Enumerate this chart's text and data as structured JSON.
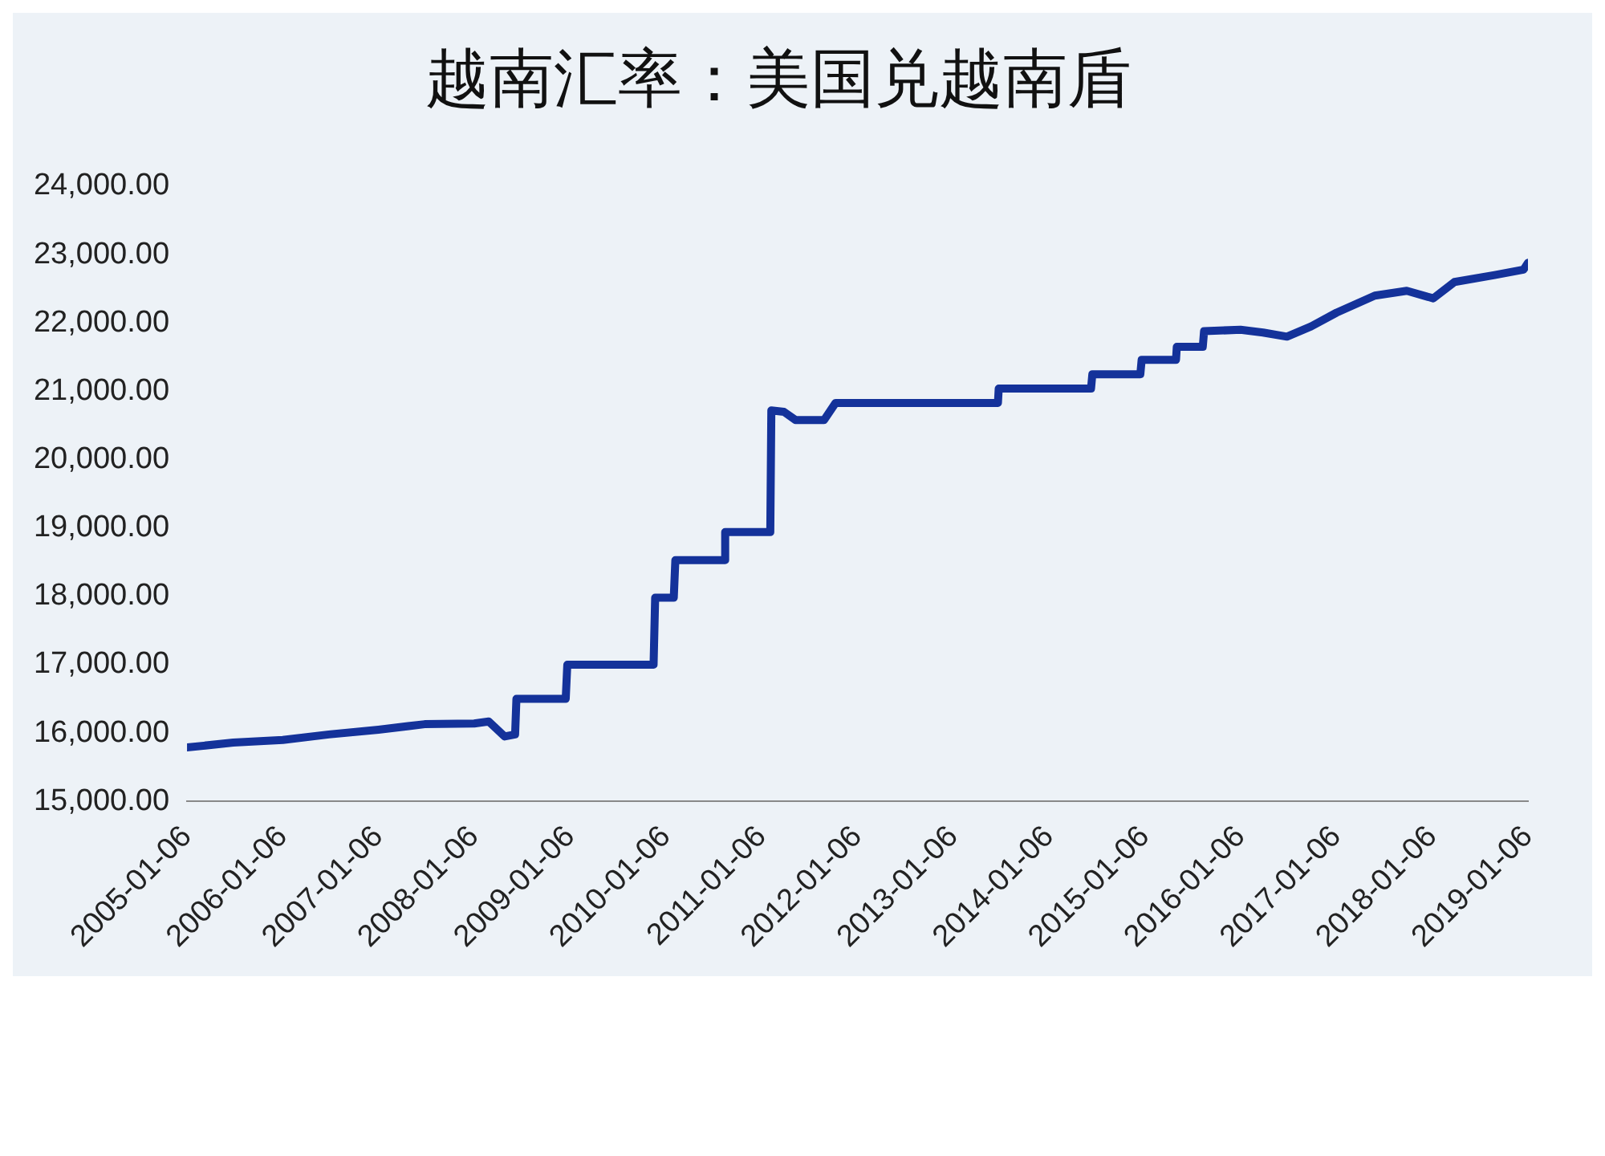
{
  "chart_data": {
    "type": "line",
    "title": "越南汇率：美国兑越南盾",
    "x": [
      "2005-01-06",
      "2005-07-01",
      "2006-01-06",
      "2006-07-01",
      "2007-01-06",
      "2007-07-01",
      "2008-01-06",
      "2008-03-01",
      "2008-05-01",
      "2008-06-10",
      "2008-06-15",
      "2008-12-20",
      "2008-12-26",
      "2009-11-20",
      "2009-11-26",
      "2010-02-05",
      "2010-02-11",
      "2010-08-15",
      "2010-08-20",
      "2011-02-08",
      "2011-02-12",
      "2011-04-01",
      "2011-05-15",
      "2011-09-01",
      "2011-10-15",
      "2013-06-25",
      "2013-06-28",
      "2014-06-15",
      "2014-06-20",
      "2014-12-20",
      "2014-12-25",
      "2015-05-05",
      "2015-05-08",
      "2015-08-15",
      "2015-08-20",
      "2016-01-06",
      "2016-04-01",
      "2016-07-01",
      "2016-10-01",
      "2017-01-06",
      "2017-06-01",
      "2017-10-01",
      "2018-01-10",
      "2018-04-01",
      "2018-09-01",
      "2018-12-20",
      "2019-01-06"
    ],
    "series": [
      {
        "color": "#14329a",
        "values": [
          15790,
          15860,
          15900,
          15980,
          16050,
          16130,
          16140,
          16170,
          15950,
          15980,
          16500,
          16500,
          17000,
          17000,
          17980,
          17980,
          18530,
          18530,
          18940,
          18940,
          20720,
          20700,
          20580,
          20580,
          20830,
          20830,
          21040,
          21040,
          21250,
          21250,
          21460,
          21460,
          21650,
          21650,
          21880,
          21900,
          21860,
          21800,
          21950,
          22150,
          22400,
          22470,
          22360,
          22600,
          22700,
          22780,
          22880
        ]
      }
    ],
    "xlim": [
      "2005-01-06",
      "2019-01-06"
    ],
    "xticks": [
      "2005-01-06",
      "2006-01-06",
      "2007-01-06",
      "2008-01-06",
      "2009-01-06",
      "2010-01-06",
      "2011-01-06",
      "2012-01-06",
      "2013-01-06",
      "2014-01-06",
      "2015-01-06",
      "2016-01-06",
      "2017-01-06",
      "2018-01-06",
      "2019-01-06"
    ],
    "ylim": [
      15000,
      24000
    ],
    "yticks": [
      {
        "value": 15000,
        "label": "15,000.00"
      },
      {
        "value": 16000,
        "label": "16,000.00"
      },
      {
        "value": 17000,
        "label": "17,000.00"
      },
      {
        "value": 18000,
        "label": "18,000.00"
      },
      {
        "value": 19000,
        "label": "19,000.00"
      },
      {
        "value": 20000,
        "label": "20,000.00"
      },
      {
        "value": 21000,
        "label": "21,000.00"
      },
      {
        "value": 22000,
        "label": "22,000.00"
      },
      {
        "value": 23000,
        "label": "23,000.00"
      },
      {
        "value": 24000,
        "label": "24,000.00"
      }
    ],
    "grid": false,
    "legend": false,
    "marker": "none",
    "line_style": "solid"
  }
}
